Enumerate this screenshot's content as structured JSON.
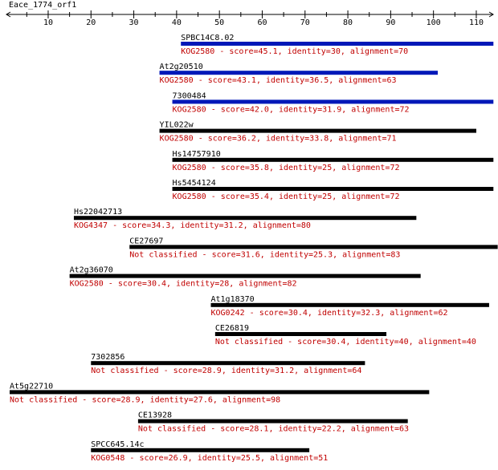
{
  "query": "Eace_1774_orf1",
  "axis": {
    "min": 1,
    "max": 114,
    "ticks": [
      10,
      20,
      30,
      40,
      50,
      60,
      70,
      80,
      90,
      100,
      110
    ]
  },
  "colors": {
    "top_bar": "#0018b8",
    "bar": "#000000",
    "label": "#000000",
    "desc": "#c00000"
  },
  "hits": [
    {
      "name": "SPBC14C8.02",
      "desc": "KOG2580 - score=45.1, identity=30, alignment=70",
      "start": 41,
      "end": 114,
      "highlight": true
    },
    {
      "name": "At2g20510",
      "desc": "KOG2580 - score=43.1, identity=36.5, alignment=63",
      "start": 36,
      "end": 101,
      "highlight": true
    },
    {
      "name": "7300484",
      "desc": "KOG2580 - score=42.0, identity=31.9, alignment=72",
      "start": 39,
      "end": 114,
      "highlight": true
    },
    {
      "name": "YIL022w",
      "desc": "KOG2580 - score=36.2, identity=33.8, alignment=71",
      "start": 36,
      "end": 110,
      "highlight": false
    },
    {
      "name": "Hs14757910",
      "desc": "KOG2580 - score=35.8, identity=25, alignment=72",
      "start": 39,
      "end": 114,
      "highlight": false
    },
    {
      "name": "Hs5454124",
      "desc": "KOG2580 - score=35.4, identity=25, alignment=72",
      "start": 39,
      "end": 114,
      "highlight": false
    },
    {
      "name": "Hs22042713",
      "desc": "KOG4347 - score=34.3, identity=31.2, alignment=80",
      "start": 16,
      "end": 96,
      "highlight": false
    },
    {
      "name": "CE27697",
      "desc": "Not classified - score=31.6, identity=25.3, alignment=83",
      "start": 29,
      "end": 115,
      "highlight": false
    },
    {
      "name": "At2g36070",
      "desc": "KOG2580 - score=30.4, identity=28, alignment=82",
      "start": 15,
      "end": 97,
      "highlight": false
    },
    {
      "name": "At1g18370",
      "desc": "KOG0242 - score=30.4, identity=32.3, alignment=62",
      "start": 48,
      "end": 113,
      "highlight": false
    },
    {
      "name": "CE26819",
      "desc": "Not classified - score=30.4, identity=40, alignment=40",
      "start": 49,
      "end": 89,
      "highlight": false
    },
    {
      "name": "7302856",
      "desc": "Not classified - score=28.9, identity=31.2, alignment=64",
      "start": 20,
      "end": 84,
      "highlight": false
    },
    {
      "name": "At5g22710",
      "desc": "Not classified - score=28.9, identity=27.6, alignment=98",
      "start": 1,
      "end": 99,
      "highlight": false
    },
    {
      "name": "CE13928",
      "desc": "Not classified - score=28.1, identity=22.2, alignment=63",
      "start": 31,
      "end": 94,
      "highlight": false
    },
    {
      "name": "SPCC645.14c",
      "desc": "KOG0548 - score=26.9, identity=25.5, alignment=51",
      "start": 20,
      "end": 71,
      "highlight": false
    }
  ]
}
